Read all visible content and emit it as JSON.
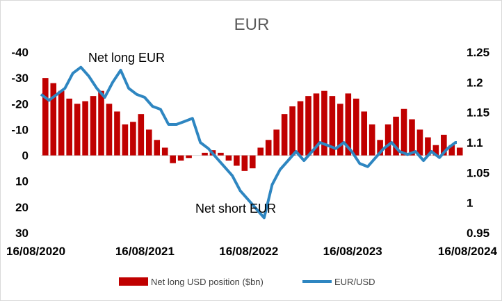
{
  "chart_data": {
    "type": "bar+line",
    "title": "EUR",
    "x_tick_labels": [
      "16/08/2020",
      "16/08/2021",
      "16/08/2022",
      "16/08/2023",
      "16/08/2024"
    ],
    "y_left": {
      "ticks": [
        "-40",
        "-30",
        "-20",
        "-10",
        "0",
        "10",
        "20",
        "30"
      ],
      "lim": [
        -40,
        30
      ],
      "inverted": true
    },
    "y_right": {
      "ticks": [
        "1.25",
        "1.2",
        "1.15",
        "1.1",
        "1.05",
        "1",
        "0.95"
      ],
      "lim": [
        0.95,
        1.25
      ]
    },
    "annotations": [
      {
        "text": "Net long EUR"
      },
      {
        "text": "Net short EUR"
      }
    ],
    "colors": {
      "bars": "#c00000",
      "line": "#2e86c1",
      "axis": "#d9d9d9"
    },
    "series": [
      {
        "name": "Net long USD position ($bn)",
        "kind": "bar",
        "x": [
          "2020-08-16",
          "2020-09-13",
          "2020-10-11",
          "2020-11-08",
          "2020-12-06",
          "2021-01-03",
          "2021-01-31",
          "2021-02-28",
          "2021-03-28",
          "2021-04-25",
          "2021-05-23",
          "2021-06-20",
          "2021-07-18",
          "2021-08-15",
          "2021-09-12",
          "2021-10-10",
          "2021-11-07",
          "2021-12-05",
          "2022-01-02",
          "2022-01-30",
          "2022-02-27",
          "2022-03-27",
          "2022-04-24",
          "2022-05-22",
          "2022-06-19",
          "2022-07-17",
          "2022-08-14",
          "2022-09-11",
          "2022-10-09",
          "2022-11-06",
          "2022-12-04",
          "2023-01-01",
          "2023-01-29",
          "2023-02-26",
          "2023-03-26",
          "2023-04-23",
          "2023-05-21",
          "2023-06-18",
          "2023-07-16",
          "2023-08-13",
          "2023-09-10",
          "2023-10-08",
          "2023-11-05",
          "2023-12-03",
          "2023-12-31",
          "2024-01-28",
          "2024-02-25",
          "2024-03-24",
          "2024-04-21",
          "2024-05-19",
          "2024-06-16",
          "2024-07-14",
          "2024-08-11"
        ],
        "values": [
          -30,
          -28,
          -25,
          -22,
          -20,
          -21,
          -23,
          -25,
          -20,
          -17,
          -12,
          -13,
          -16,
          -10,
          -6,
          -3,
          3,
          2,
          1,
          0,
          -1,
          -2,
          -1,
          2,
          4,
          6,
          5,
          -3,
          -6,
          -10,
          -16,
          -19,
          -21,
          -23,
          -24,
          -25,
          -23,
          -20,
          -24,
          -22,
          -17,
          -12,
          -6,
          -12,
          -15,
          -18,
          -14,
          -10,
          -7,
          -4,
          -8,
          -4,
          -3
        ]
      },
      {
        "name": "EUR/USD",
        "kind": "line",
        "x": [
          "2020-08-16",
          "2020-09-13",
          "2020-10-11",
          "2020-11-08",
          "2020-12-06",
          "2021-01-03",
          "2021-01-31",
          "2021-02-28",
          "2021-03-28",
          "2021-04-25",
          "2021-05-23",
          "2021-06-20",
          "2021-07-18",
          "2021-08-15",
          "2021-09-12",
          "2021-10-10",
          "2021-11-07",
          "2021-12-05",
          "2022-01-02",
          "2022-01-30",
          "2022-02-27",
          "2022-03-27",
          "2022-04-24",
          "2022-05-22",
          "2022-06-19",
          "2022-07-17",
          "2022-08-14",
          "2022-09-11",
          "2022-10-09",
          "2022-11-06",
          "2022-12-04",
          "2023-01-01",
          "2023-01-29",
          "2023-02-26",
          "2023-03-26",
          "2023-04-23",
          "2023-05-21",
          "2023-06-18",
          "2023-07-16",
          "2023-08-13",
          "2023-09-10",
          "2023-10-08",
          "2023-11-05",
          "2023-12-03",
          "2023-12-31",
          "2024-01-28",
          "2024-02-25",
          "2024-03-24",
          "2024-04-21",
          "2024-05-19",
          "2024-06-16",
          "2024-07-14",
          "2024-08-11",
          "2024-08-16"
        ],
        "values": [
          1.18,
          1.17,
          1.18,
          1.19,
          1.215,
          1.225,
          1.21,
          1.19,
          1.175,
          1.2,
          1.22,
          1.19,
          1.18,
          1.175,
          1.16,
          1.155,
          1.13,
          1.13,
          1.135,
          1.14,
          1.1,
          1.09,
          1.075,
          1.06,
          1.045,
          1.02,
          1.005,
          0.99,
          0.975,
          1.03,
          1.055,
          1.07,
          1.085,
          1.07,
          1.085,
          1.1,
          1.095,
          1.09,
          1.1,
          1.085,
          1.065,
          1.06,
          1.075,
          1.09,
          1.1,
          1.085,
          1.08,
          1.085,
          1.07,
          1.085,
          1.075,
          1.09,
          1.1,
          1.1
        ]
      }
    ],
    "legend": {
      "position": "bottom"
    }
  }
}
